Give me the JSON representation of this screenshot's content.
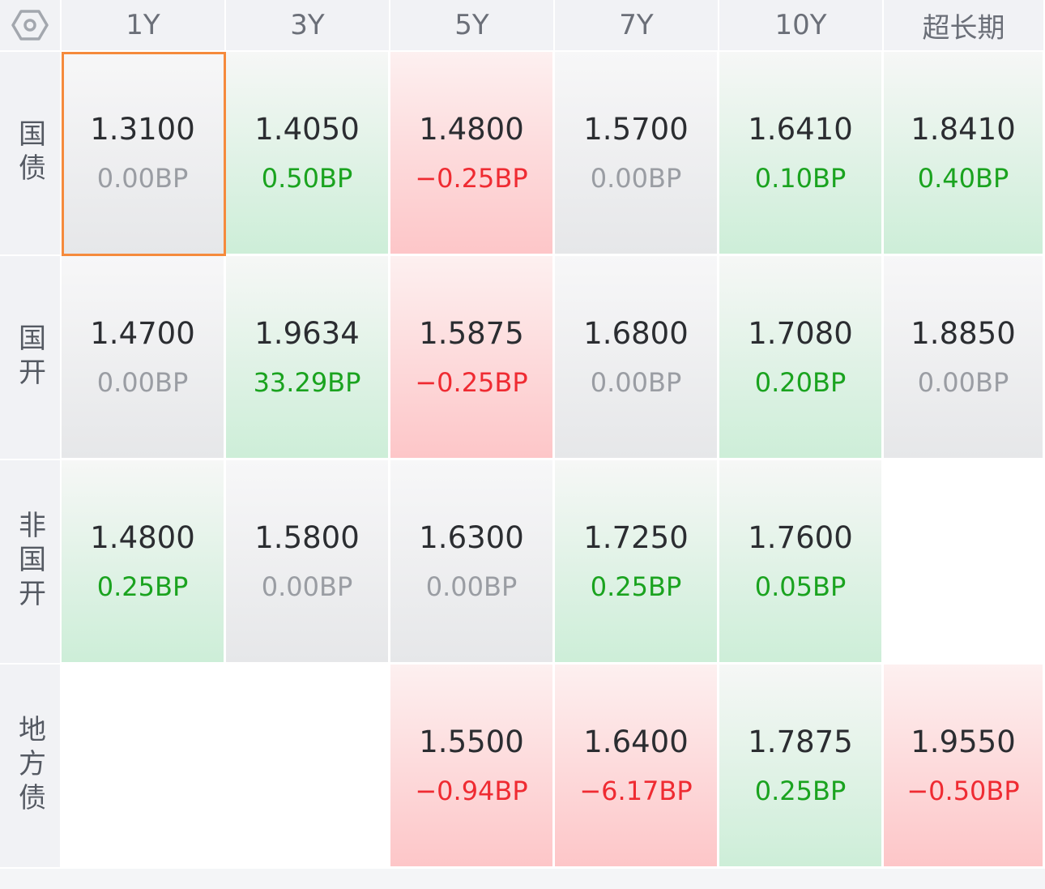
{
  "columns": [
    "1Y",
    "3Y",
    "5Y",
    "7Y",
    "10Y",
    "超长期"
  ],
  "corner_icon": "settings-hex-icon",
  "colors": {
    "up": "#1aa31f",
    "down": "#ef2b32",
    "flat": "#9a9da3",
    "selected_border": "#f58a3c"
  },
  "rows": [
    {
      "label": "国债",
      "cells": [
        {
          "value": "1.3100",
          "change": "0.00BP",
          "trend": "flat",
          "selected": true
        },
        {
          "value": "1.4050",
          "change": "0.50BP",
          "trend": "up"
        },
        {
          "value": "1.4800",
          "change": "−0.25BP",
          "trend": "down"
        },
        {
          "value": "1.5700",
          "change": "0.00BP",
          "trend": "flat"
        },
        {
          "value": "1.6410",
          "change": "0.10BP",
          "trend": "up"
        },
        {
          "value": "1.8410",
          "change": "0.40BP",
          "trend": "up"
        }
      ]
    },
    {
      "label": "国开",
      "cells": [
        {
          "value": "1.4700",
          "change": "0.00BP",
          "trend": "flat"
        },
        {
          "value": "1.9634",
          "change": "33.29BP",
          "trend": "up"
        },
        {
          "value": "1.5875",
          "change": "−0.25BP",
          "trend": "down"
        },
        {
          "value": "1.6800",
          "change": "0.00BP",
          "trend": "flat"
        },
        {
          "value": "1.7080",
          "change": "0.20BP",
          "trend": "up"
        },
        {
          "value": "1.8850",
          "change": "0.00BP",
          "trend": "flat"
        }
      ]
    },
    {
      "label": "非国开",
      "cells": [
        {
          "value": "1.4800",
          "change": "0.25BP",
          "trend": "up"
        },
        {
          "value": "1.5800",
          "change": "0.00BP",
          "trend": "flat"
        },
        {
          "value": "1.6300",
          "change": "0.00BP",
          "trend": "flat"
        },
        {
          "value": "1.7250",
          "change": "0.25BP",
          "trend": "up"
        },
        {
          "value": "1.7600",
          "change": "0.05BP",
          "trend": "up"
        },
        null
      ]
    },
    {
      "label": "地方债",
      "cells": [
        null,
        null,
        {
          "value": "1.5500",
          "change": "−0.94BP",
          "trend": "down"
        },
        {
          "value": "1.6400",
          "change": "−6.17BP",
          "trend": "down"
        },
        {
          "value": "1.7875",
          "change": "0.25BP",
          "trend": "up"
        },
        {
          "value": "1.9550",
          "change": "−0.50BP",
          "trend": "down"
        }
      ]
    }
  ]
}
